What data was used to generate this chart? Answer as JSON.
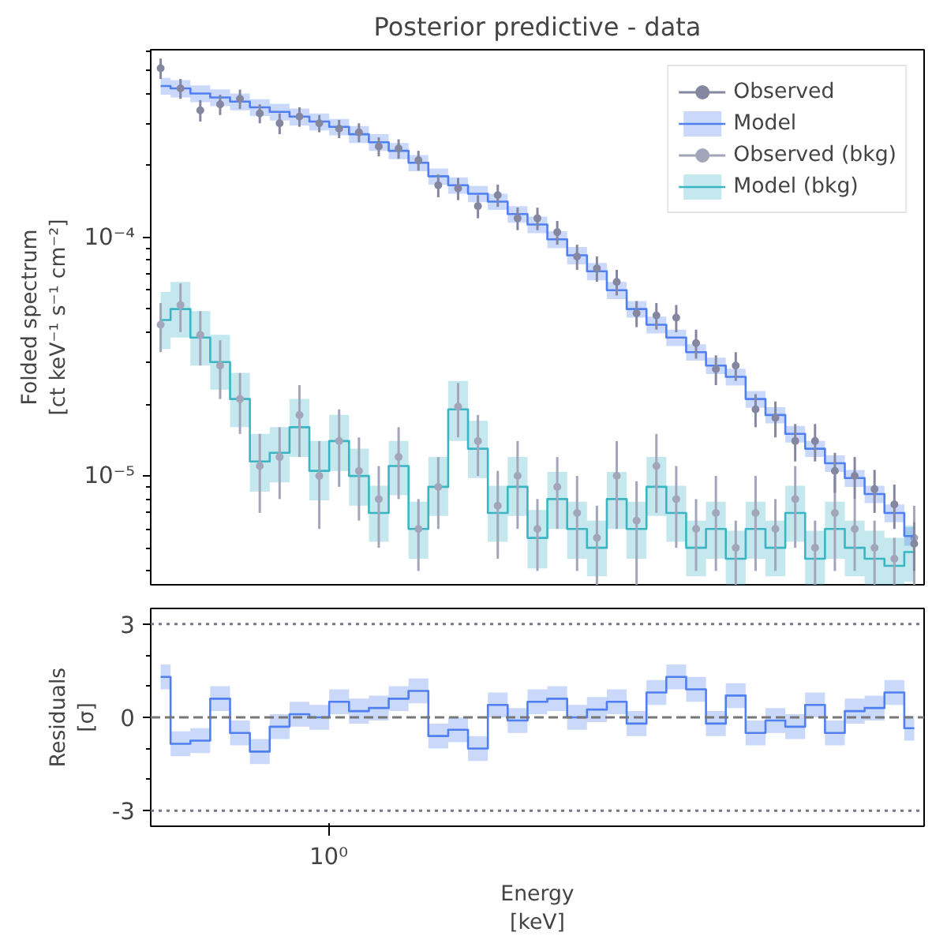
{
  "chart_data": [
    {
      "type": "scatter",
      "title": "Posterior predictive - data",
      "ylabel": "Folded spectrum\n[ct keV⁻¹ s⁻¹ cm⁻²]",
      "log": "y",
      "grid": false,
      "legend": "top right",
      "tick_labels": "y",
      "categories": [
        null,
        null,
        null,
        null,
        null,
        null,
        null,
        null,
        null,
        null,
        null,
        null,
        null,
        null,
        null,
        null,
        null,
        null,
        null,
        null,
        null,
        null,
        null,
        null,
        null,
        null,
        null,
        null,
        null,
        null,
        null,
        null,
        null,
        null,
        null,
        null,
        null,
        null,
        null
      ],
      "ylim": [
        3.5e-06,
        0.00061
      ],
      "yticks": [
        {
          "value": 4e-06,
          "label": null
        },
        {
          "value": 5e-06,
          "label": null
        },
        {
          "value": 6e-06,
          "label": null
        },
        {
          "value": 7e-06,
          "label": null
        },
        {
          "value": 8e-06,
          "label": null
        },
        {
          "value": 9e-06,
          "label": null
        },
        {
          "value": 1e-05,
          "label": "10⁻⁵"
        },
        {
          "value": 2e-05,
          "label": null
        },
        {
          "value": 3e-05,
          "label": null
        },
        {
          "value": 4e-05,
          "label": null
        },
        {
          "value": 5e-05,
          "label": null
        },
        {
          "value": 6e-05,
          "label": null
        },
        {
          "value": 7e-05,
          "label": null
        },
        {
          "value": 8e-05,
          "label": null
        },
        {
          "value": 9e-05,
          "label": null
        },
        {
          "value": 0.0001,
          "label": "10⁻⁴"
        },
        {
          "value": 0.0002,
          "label": null
        },
        {
          "value": 0.0003,
          "label": null
        },
        {
          "value": 0.0004,
          "label": null
        },
        {
          "value": 0.0005,
          "label": null
        },
        {
          "value": 0.0006,
          "label": null
        }
      ],
      "series": [
        {
          "name": "Observed",
          "type": "scatter",
          "marker": "circle",
          "color": "#84879f",
          "values": [
            0.00051,
            0.00042,
            0.00034,
            0.00036,
            0.00038,
            0.00033,
            0.0003,
            0.00032,
            0.0003,
            0.000285,
            0.000275,
            0.00024,
            0.000235,
            0.00021,
            0.000165,
            0.00016,
            0.000135,
            0.00015,
            0.00012,
            0.00012,
            0.000105,
            8.3e-05,
            7.4e-05,
            6.5e-05,
            4.8e-05,
            4.7e-05,
            4.6e-05,
            3.6e-05,
            2.8e-05,
            2.9e-05,
            1.9e-05,
            1.75e-05,
            1.4e-05,
            1.4e-05,
            1.05e-05,
            1e-05,
            8.8e-06,
            7.6e-06,
            5.2e-06
          ],
          "errors": [
            5e-05,
            4e-05,
            3.5e-05,
            3.5e-05,
            3.5e-05,
            3e-05,
            3e-05,
            3e-05,
            2.5e-05,
            2.5e-05,
            2.5e-05,
            2.2e-05,
            2.2e-05,
            2e-05,
            1.8e-05,
            1.7e-05,
            1.5e-05,
            1.6e-05,
            1.3e-05,
            1.3e-05,
            1.2e-05,
            1e-05,
            9e-06,
            8e-06,
            6e-06,
            6e-06,
            6e-06,
            5e-06,
            4e-06,
            4e-06,
            3e-06,
            3e-06,
            2.5e-06,
            2.5e-06,
            2e-06,
            2e-06,
            1.8e-06,
            1.6e-06,
            1.2e-06
          ]
        },
        {
          "name": "Model",
          "type": "step",
          "color": "#4f7ff0",
          "values": [
            0.00043,
            0.00042,
            0.0004,
            0.000385,
            0.00037,
            0.00035,
            0.000335,
            0.00032,
            0.000305,
            0.00029,
            0.00027,
            0.00025,
            0.00023,
            0.000205,
            0.00018,
            0.000165,
            0.000152,
            0.000141,
            0.000125,
            0.000113,
            9.8e-05,
            8.4e-05,
            7.2e-05,
            6e-05,
            5e-05,
            4.3e-05,
            3.8e-05,
            3.3e-05,
            2.9e-05,
            2.6e-05,
            2.1e-05,
            1.8e-05,
            1.5e-05,
            1.3e-05,
            1.13e-05,
            9.8e-06,
            8.4e-06,
            7e-06,
            5.6e-06
          ],
          "lower": [
            0.000395,
            0.000385,
            0.000368,
            0.000354,
            0.00034,
            0.000322,
            0.000308,
            0.000294,
            0.00028,
            0.000267,
            0.000248,
            0.00023,
            0.000212,
            0.000189,
            0.000166,
            0.000152,
            0.00014,
            0.00013,
            0.000115,
            0.000104,
            9e-05,
            7.7e-05,
            6.6e-05,
            5.5e-05,
            4.6e-05,
            3.95e-05,
            3.5e-05,
            3.04e-05,
            2.67e-05,
            2.39e-05,
            1.93e-05,
            1.66e-05,
            1.38e-05,
            1.2e-05,
            1.04e-05,
            9e-06,
            7.7e-06,
            6.4e-06,
            5.1e-06
          ],
          "upper": [
            0.000465,
            0.000455,
            0.000432,
            0.000416,
            0.0004,
            0.000378,
            0.000362,
            0.000346,
            0.00033,
            0.000313,
            0.000292,
            0.00027,
            0.000248,
            0.000221,
            0.000194,
            0.000178,
            0.000164,
            0.000152,
            0.000135,
            0.000122,
            0.000106,
            9.1e-05,
            7.8e-05,
            6.5e-05,
            5.4e-05,
            4.65e-05,
            4.1e-05,
            3.56e-05,
            3.13e-05,
            2.81e-05,
            2.27e-05,
            1.94e-05,
            1.62e-05,
            1.4e-05,
            1.22e-05,
            1.06e-05,
            9.1e-06,
            7.6e-06,
            6.1e-06
          ]
        },
        {
          "name": "Observed (bkg)",
          "type": "scatter",
          "marker": "circle",
          "color": "#a3a6ba",
          "values": [
            4.3e-05,
            5.2e-05,
            3.9e-05,
            2.9e-05,
            2.1e-05,
            1.1e-05,
            1.2e-05,
            1.8e-05,
            1e-05,
            1.4e-05,
            1.05e-05,
            8e-06,
            1.2e-05,
            6e-06,
            9e-06,
            1.95e-05,
            1.4e-05,
            7.5e-06,
            1e-05,
            6e-06,
            9e-06,
            7e-06,
            5.5e-06,
            1e-05,
            6.5e-06,
            1.1e-05,
            8e-06,
            6e-06,
            7e-06,
            5e-06,
            7e-06,
            6e-06,
            8e-06,
            5e-06,
            7e-06,
            6e-06,
            5e-06,
            4.5e-06,
            5.5e-06
          ],
          "errors": [
            1e-05,
            1.2e-05,
            1e-05,
            8e-06,
            6e-06,
            4e-06,
            4e-06,
            6e-06,
            4e-06,
            5e-06,
            4e-06,
            3e-06,
            4e-06,
            2e-06,
            3e-06,
            5e-06,
            4e-06,
            3e-06,
            4e-06,
            2e-06,
            3e-06,
            3e-06,
            2e-06,
            4e-06,
            3e-06,
            4e-06,
            3e-06,
            2e-06,
            3e-06,
            1.5e-06,
            3e-06,
            2e-06,
            3e-06,
            1.5e-06,
            3e-06,
            2e-06,
            1.5e-06,
            1e-06,
            2e-06
          ]
        },
        {
          "name": "Model (bkg)",
          "type": "step",
          "color": "#3bb4c4",
          "values": [
            4.5e-05,
            5e-05,
            3.8e-05,
            3e-05,
            2.1e-05,
            1.15e-05,
            1.25e-05,
            1.6e-05,
            1.05e-05,
            1.4e-05,
            1e-05,
            7e-06,
            1.1e-05,
            6e-06,
            9e-06,
            1.9e-05,
            1.3e-05,
            7e-06,
            9e-06,
            5.5e-06,
            8e-06,
            6e-06,
            5e-06,
            8e-06,
            6e-06,
            9e-06,
            7e-06,
            5e-06,
            6e-06,
            4.5e-06,
            6e-06,
            5e-06,
            7e-06,
            4.5e-06,
            6e-06,
            5e-06,
            4.5e-06,
            4.2e-06,
            4.8e-06
          ],
          "lower": [
            3.4e-05,
            3.8e-05,
            2.9e-05,
            2.3e-05,
            1.6e-05,
            8.6e-06,
            9.4e-06,
            1.2e-05,
            7.9e-06,
            1.05e-05,
            7.5e-06,
            5.3e-06,
            8.3e-06,
            4.5e-06,
            6.8e-06,
            1.4e-05,
            9.8e-06,
            5.3e-06,
            6.8e-06,
            4.1e-06,
            6e-06,
            4.5e-06,
            3.8e-06,
            6e-06,
            4.5e-06,
            6.8e-06,
            5.3e-06,
            3.8e-06,
            4.5e-06,
            3.5e-06,
            4.5e-06,
            3.8e-06,
            5.3e-06,
            3.5e-06,
            4.5e-06,
            3.8e-06,
            3.5e-06,
            3.5e-06,
            3.6e-06
          ],
          "upper": [
            5.9e-05,
            6.5e-05,
            4.9e-05,
            3.9e-05,
            2.7e-05,
            1.5e-05,
            1.6e-05,
            2.1e-05,
            1.4e-05,
            1.8e-05,
            1.3e-05,
            9.1e-06,
            1.4e-05,
            7.8e-06,
            1.2e-05,
            2.5e-05,
            1.7e-05,
            9.1e-06,
            1.2e-05,
            7.2e-06,
            1.04e-05,
            7.8e-06,
            6.5e-06,
            1.04e-05,
            7.8e-06,
            1.2e-05,
            9.1e-06,
            6.5e-06,
            7.8e-06,
            5.9e-06,
            7.8e-06,
            6.5e-06,
            9.1e-06,
            5.9e-06,
            7.8e-06,
            6.5e-06,
            5.9e-06,
            5.5e-06,
            6.2e-06
          ]
        }
      ]
    },
    {
      "type": "step",
      "xlabel": "Energy\n[keV]",
      "ylabel": "Residuals\n[σ]",
      "grid": false,
      "annotations": [
        "10⁰"
      ],
      "categories": [
        null,
        null,
        null,
        null,
        null,
        null,
        null,
        null,
        null,
        null,
        null,
        null,
        null,
        null,
        null,
        null,
        null,
        null,
        null,
        null,
        null,
        null,
        null,
        null,
        null,
        null,
        null,
        null,
        null,
        null,
        null,
        null,
        null,
        null,
        null,
        null,
        null,
        null,
        null
      ],
      "ylim": [
        -3.5,
        3.5
      ],
      "yticks": [
        {
          "value": -3,
          "label": "-3"
        },
        {
          "value": -2,
          "label": null
        },
        {
          "value": -1,
          "label": null
        },
        {
          "value": 0,
          "label": "0"
        },
        {
          "value": 1,
          "label": null
        },
        {
          "value": 2,
          "label": null
        },
        {
          "value": 3,
          "label": "3"
        }
      ],
      "ref_lines": [
        {
          "axis": "y",
          "value": 0,
          "color": "#777777",
          "line_style": "dashed"
        },
        {
          "axis": "y",
          "value": 3,
          "color": "#777788",
          "line_style": "dotted"
        },
        {
          "axis": "y",
          "value": -3,
          "color": "#777788",
          "line_style": "dotted"
        }
      ],
      "series": [
        {
          "color": "#4f7ff0",
          "values": [
            1.3,
            -0.85,
            -0.75,
            0.6,
            -0.5,
            -1.1,
            -0.3,
            0.1,
            0.0,
            0.5,
            0.2,
            0.3,
            0.6,
            0.85,
            -0.6,
            -0.4,
            -1.0,
            0.4,
            -0.1,
            0.5,
            0.6,
            0.0,
            0.25,
            0.5,
            -0.2,
            0.8,
            1.3,
            0.9,
            -0.2,
            0.7,
            -0.5,
            -0.1,
            -0.3,
            0.4,
            -0.5,
            0.2,
            0.3,
            0.8,
            -0.35
          ],
          "lower": [
            0.9,
            -1.25,
            -1.15,
            0.2,
            -0.9,
            -1.5,
            -0.7,
            -0.3,
            -0.4,
            0.1,
            -0.2,
            -0.1,
            0.2,
            0.45,
            -1.0,
            -0.8,
            -1.4,
            0.0,
            -0.5,
            0.1,
            0.2,
            -0.4,
            -0.15,
            0.1,
            -0.6,
            0.4,
            0.9,
            0.5,
            -0.6,
            0.3,
            -0.9,
            -0.5,
            -0.7,
            0.0,
            -0.9,
            -0.2,
            -0.1,
            0.4,
            -0.75
          ],
          "upper": [
            1.7,
            -0.45,
            -0.35,
            1.0,
            -0.1,
            -0.7,
            0.1,
            0.5,
            0.4,
            0.9,
            0.6,
            0.7,
            1.0,
            1.25,
            -0.2,
            0.0,
            -0.6,
            0.8,
            0.3,
            0.9,
            1.0,
            0.4,
            0.65,
            0.9,
            0.2,
            1.2,
            1.7,
            1.3,
            0.2,
            1.1,
            -0.1,
            0.3,
            0.1,
            0.8,
            -0.1,
            0.6,
            0.7,
            1.2,
            0.05
          ]
        }
      ]
    }
  ]
}
